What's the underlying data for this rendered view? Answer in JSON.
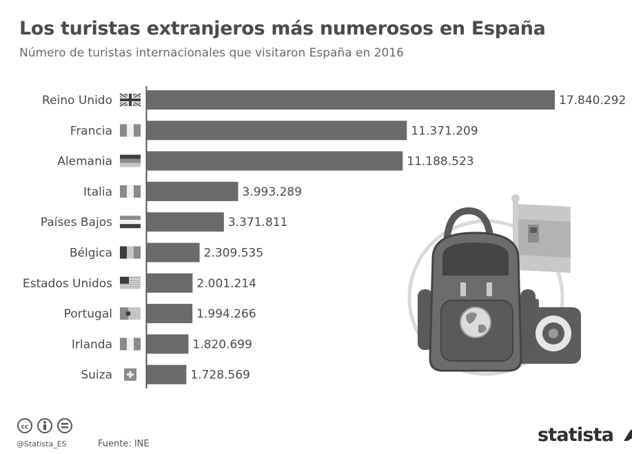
{
  "header": {
    "title": "Los turistas extranjeros más numerosos en España",
    "subtitle": "Número de turistas internacionales que visitaron España en 2016"
  },
  "chart_data": {
    "type": "bar",
    "orientation": "horizontal",
    "title": "Los turistas extranjeros más numerosos en España",
    "subtitle": "Número de turistas internacionales que visitaron España en 2016",
    "categories": [
      "Reino Unido",
      "Francia",
      "Alemania",
      "Italia",
      "Países Bajos",
      "Bélgica",
      "Estados Unidos",
      "Portugal",
      "Irlanda",
      "Suiza"
    ],
    "values": [
      17840292,
      11371209,
      11188523,
      3993289,
      3371811,
      2309535,
      2001214,
      1994266,
      1820699,
      1728569
    ],
    "value_labels": [
      "17.840.292",
      "11.371.209",
      "11.188.523",
      "3.993.289",
      "3.371.811",
      "2.309.535",
      "2.001.214",
      "1.994.266",
      "1.820.699",
      "1.728.569"
    ],
    "flag_icons": [
      "uk-flag-icon",
      "france-flag-icon",
      "germany-flag-icon",
      "italy-flag-icon",
      "netherlands-flag-icon",
      "belgium-flag-icon",
      "usa-flag-icon",
      "portugal-flag-icon",
      "ireland-flag-icon",
      "switzerland-flag-icon"
    ],
    "xlim": [
      0,
      17840292
    ],
    "grid": false,
    "legend": "none",
    "colors": {
      "bar": "#6a6a6a",
      "axis": "#555555",
      "text": "#4a4a4a"
    }
  },
  "illustration": {
    "icons": [
      "backpack-icon",
      "globe-icon",
      "camera-icon",
      "spain-flag-icon"
    ]
  },
  "footer": {
    "handle": "@Statista_ES",
    "source": "Fuente: INE",
    "logo": "statista",
    "license_icons": [
      "cc-icon",
      "by-icon",
      "nd-icon"
    ]
  }
}
